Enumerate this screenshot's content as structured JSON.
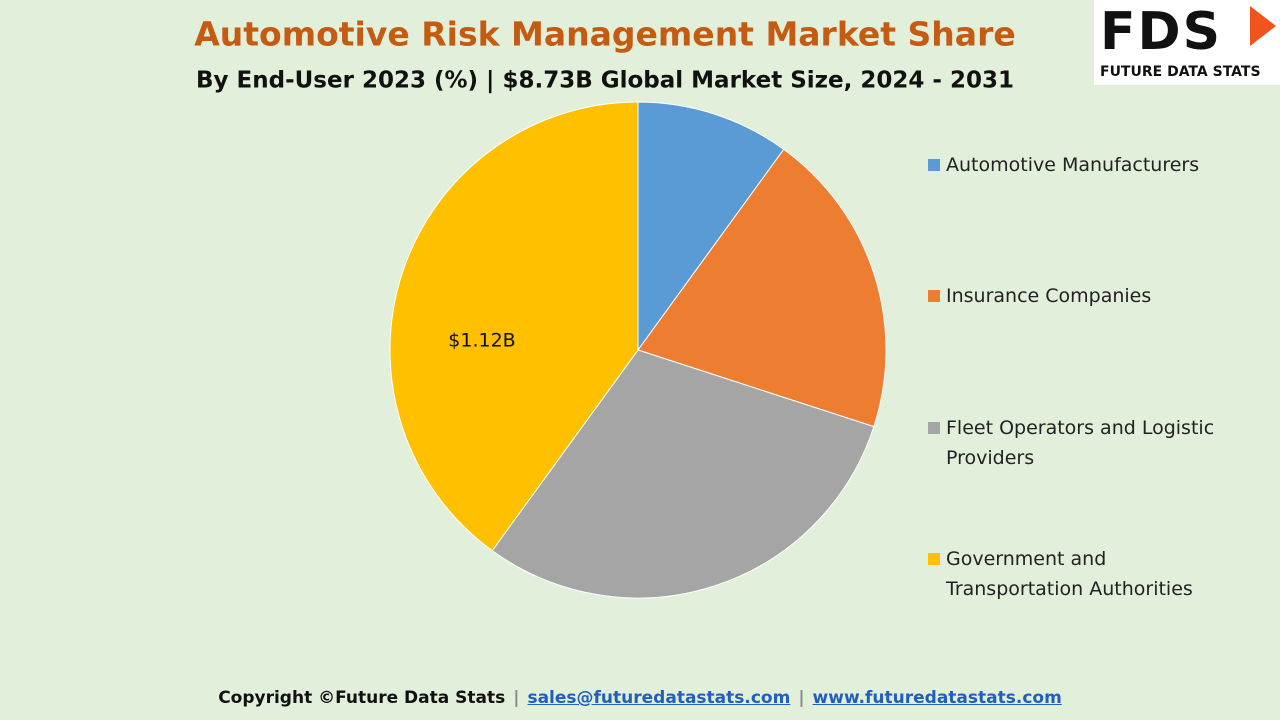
{
  "chart_data": {
    "type": "pie",
    "title": "Automotive Risk Management Market Share",
    "subtitle": "By End-User 2023 (%) | $8.73B Global Market Size, 2024 - 2031",
    "categories": [
      "Automotive Manufacturers",
      "Insurance Companies",
      "Fleet Operators and Logistic Providers",
      "Government and Transportation Authorities"
    ],
    "values": [
      10,
      20,
      30,
      40
    ],
    "colors": [
      "#5b9bd5",
      "#ed7d31",
      "#a5a5a5",
      "#ffc000"
    ],
    "annotation": "$1.12B",
    "legend": "right"
  },
  "logo": {
    "mark": "FDS",
    "name": "FUTURE DATA STATS"
  },
  "footer": {
    "copyright": "Copyright  ©Future Data Stats",
    "separator": "|",
    "email": "sales@futuredatastats.com",
    "website": "www.futuredatastats.com"
  }
}
